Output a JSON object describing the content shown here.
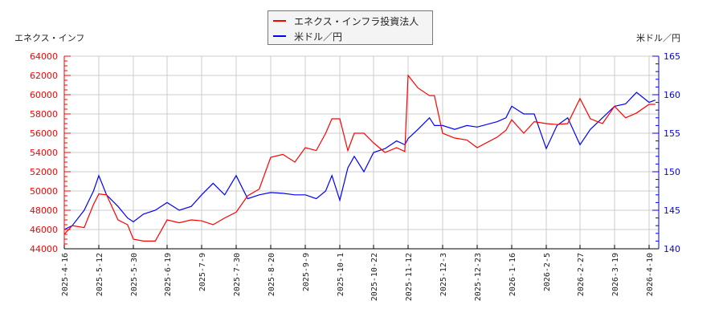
{
  "chart_data": {
    "type": "line",
    "title": "",
    "legend": {
      "position": "top-center",
      "entries": [
        {
          "label": "エネクス・インフラ投資法人",
          "color": "#ff0000"
        },
        {
          "label": "米ドル／円",
          "color": "#0000ff"
        }
      ]
    },
    "left_axis": {
      "title": "エネクス・インフ",
      "color": "#ff0000",
      "min": 44000,
      "max": 64000,
      "ticks": [
        44000,
        46000,
        48000,
        50000,
        52000,
        54000,
        56000,
        58000,
        60000,
        62000,
        64000
      ]
    },
    "right_axis": {
      "title": "米ドル／円",
      "color": "#0000ff",
      "min": 140,
      "max": 165,
      "ticks": [
        140,
        145,
        150,
        155,
        160,
        165
      ]
    },
    "x_tick_labels": [
      "2025-4-16",
      "2025-5-12",
      "2025-5-30",
      "2025-6-19",
      "2025-7-9",
      "2025-7-30",
      "2025-8-20",
      "2025-9-9",
      "2025-10-1",
      "2025-10-22",
      "2025-11-12",
      "2025-12-3",
      "2025-12-23",
      "2026-1-16",
      "2026-2-5",
      "2026-2-27",
      "2026-3-19",
      "2026-4-10"
    ],
    "grid": true,
    "series": [
      {
        "name": "エネクス・インフラ投資法人",
        "axis": "left",
        "color": "#ff0000",
        "x": [
          "2025-4-16",
          "2025-4-22",
          "2025-5-1",
          "2025-5-8",
          "2025-5-12",
          "2025-5-16",
          "2025-5-22",
          "2025-5-27",
          "2025-5-30",
          "2025-6-5",
          "2025-6-12",
          "2025-6-19",
          "2025-6-26",
          "2025-7-3",
          "2025-7-9",
          "2025-7-16",
          "2025-7-23",
          "2025-7-30",
          "2025-8-6",
          "2025-8-13",
          "2025-8-20",
          "2025-8-27",
          "2025-9-3",
          "2025-9-9",
          "2025-9-16",
          "2025-9-22",
          "2025-9-26",
          "2025-10-1",
          "2025-10-6",
          "2025-10-10",
          "2025-10-16",
          "2025-10-22",
          "2025-10-29",
          "2025-11-5",
          "2025-11-10",
          "2025-11-12",
          "2025-11-18",
          "2025-11-25",
          "2025-11-28",
          "2025-12-3",
          "2025-12-10",
          "2025-12-17",
          "2025-12-23",
          "2026-1-6",
          "2026-1-12",
          "2026-1-16",
          "2026-1-23",
          "2026-1-29",
          "2026-2-5",
          "2026-2-12",
          "2026-2-19",
          "2026-2-27",
          "2026-3-5",
          "2026-3-12",
          "2026-3-19",
          "2026-3-26",
          "2026-4-2",
          "2026-4-10",
          "2026-4-14"
        ],
        "values": [
          45500,
          46400,
          46200,
          48600,
          49700,
          49600,
          47000,
          46500,
          45000,
          44800,
          44800,
          47000,
          46700,
          47000,
          46900,
          46500,
          47200,
          47800,
          49500,
          50200,
          53500,
          53800,
          53000,
          54500,
          54200,
          56000,
          57500,
          57500,
          54200,
          56000,
          56000,
          55000,
          54000,
          54500,
          54100,
          62000,
          60700,
          59900,
          59900,
          56000,
          55500,
          55300,
          54500,
          55600,
          56300,
          57400,
          56000,
          57200,
          57000,
          56900,
          57000,
          59600,
          57500,
          57000,
          58800,
          57600,
          58100,
          59000,
          59000
        ]
      },
      {
        "name": "米ドル／円",
        "axis": "right",
        "color": "#0000ff",
        "x": [
          "2025-4-16",
          "2025-4-22",
          "2025-5-1",
          "2025-5-8",
          "2025-5-12",
          "2025-5-16",
          "2025-5-22",
          "2025-5-27",
          "2025-5-30",
          "2025-6-5",
          "2025-6-12",
          "2025-6-19",
          "2025-6-26",
          "2025-7-3",
          "2025-7-9",
          "2025-7-16",
          "2025-7-23",
          "2025-7-30",
          "2025-8-6",
          "2025-8-13",
          "2025-8-20",
          "2025-8-27",
          "2025-9-3",
          "2025-9-9",
          "2025-9-16",
          "2025-9-22",
          "2025-9-26",
          "2025-10-1",
          "2025-10-6",
          "2025-10-10",
          "2025-10-16",
          "2025-10-22",
          "2025-10-29",
          "2025-11-5",
          "2025-11-10",
          "2025-11-12",
          "2025-11-18",
          "2025-11-25",
          "2025-11-28",
          "2025-12-3",
          "2025-12-10",
          "2025-12-17",
          "2025-12-23",
          "2026-1-6",
          "2026-1-12",
          "2026-1-16",
          "2026-1-23",
          "2026-1-29",
          "2026-2-5",
          "2026-2-12",
          "2026-2-19",
          "2026-2-27",
          "2026-3-5",
          "2026-3-12",
          "2026-3-19",
          "2026-3-26",
          "2026-4-2",
          "2026-4-10",
          "2026-4-14"
        ],
        "values": [
          142.5,
          143.0,
          145.0,
          147.5,
          149.5,
          147.0,
          145.5,
          144.0,
          143.5,
          144.5,
          145.0,
          146.0,
          145.0,
          145.5,
          147.0,
          148.5,
          147.0,
          149.5,
          146.5,
          147.0,
          147.3,
          147.2,
          147.0,
          147.0,
          146.5,
          147.5,
          149.5,
          146.3,
          150.5,
          152.0,
          150.0,
          152.5,
          153.0,
          154.0,
          153.5,
          154.3,
          155.5,
          157.0,
          156.0,
          156.0,
          155.5,
          156.0,
          155.8,
          156.5,
          157.0,
          158.5,
          157.5,
          157.5,
          153.0,
          156.0,
          157.0,
          153.5,
          155.5,
          157.0,
          158.5,
          158.8,
          160.3,
          159.0,
          159.3
        ]
      }
    ]
  }
}
